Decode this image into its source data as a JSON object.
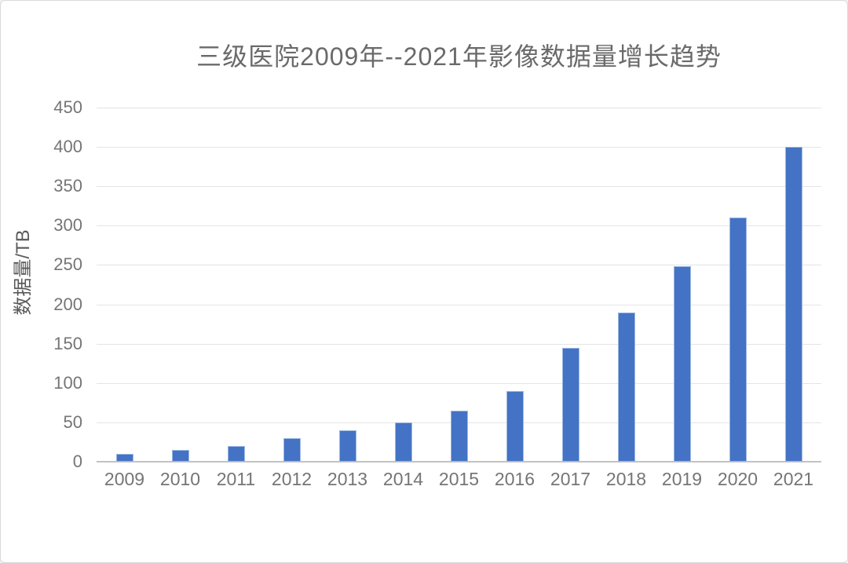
{
  "chart_data": {
    "type": "bar",
    "title": "三级医院2009年--2021年影像数据量增长趋势",
    "ylabel": "数据量/TB",
    "xlabel": "",
    "categories": [
      "2009",
      "2010",
      "2011",
      "2012",
      "2013",
      "2014",
      "2015",
      "2016",
      "2017",
      "2018",
      "2019",
      "2020",
      "2021"
    ],
    "values": [
      10,
      15,
      20,
      30,
      40,
      50,
      65,
      90,
      145,
      190,
      248,
      310,
      400
    ],
    "ylim": [
      0,
      450
    ],
    "ytick_step": 50,
    "grid": true,
    "legend": false,
    "colors": {
      "bar": "#4472C4",
      "bar_edge": "#9db8e2",
      "gridline": "#e4e4e4",
      "axis_line": "#c3c3c3",
      "title_text": "#6a6a6a",
      "axis_title_text": "#595959",
      "tick_text": "#757575",
      "background": "#ffffff",
      "frame_border": "#d9d9d9"
    }
  }
}
